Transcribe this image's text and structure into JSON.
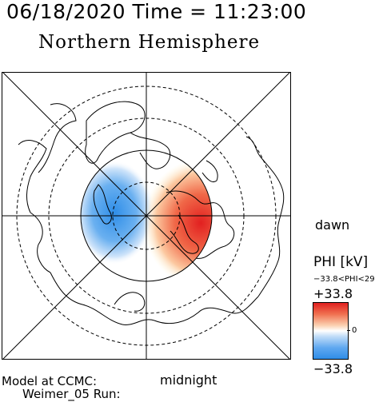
{
  "header": {
    "date_time": "06/18/2020 Time = 11:23:00"
  },
  "map": {
    "title": "Northern Hemisphere",
    "label_dawn": "dawn",
    "label_midnight": "midnight",
    "convection": {
      "positive_cell": "dawn side (red)",
      "negative_cell": "dusk side (blue)"
    }
  },
  "model": {
    "line1": "Model at CCMC:",
    "line2": "Weimer_05 Run:"
  },
  "colorbar": {
    "title": "PHI [kV]",
    "range_text": "−33.8<PHI<29",
    "max_label": "+33.8",
    "mid_label": "0",
    "min_label": "−33.8",
    "value_max": 33.8,
    "value_min": -33.8,
    "color_max": "#e02020",
    "color_min": "#2f8ee8"
  }
}
